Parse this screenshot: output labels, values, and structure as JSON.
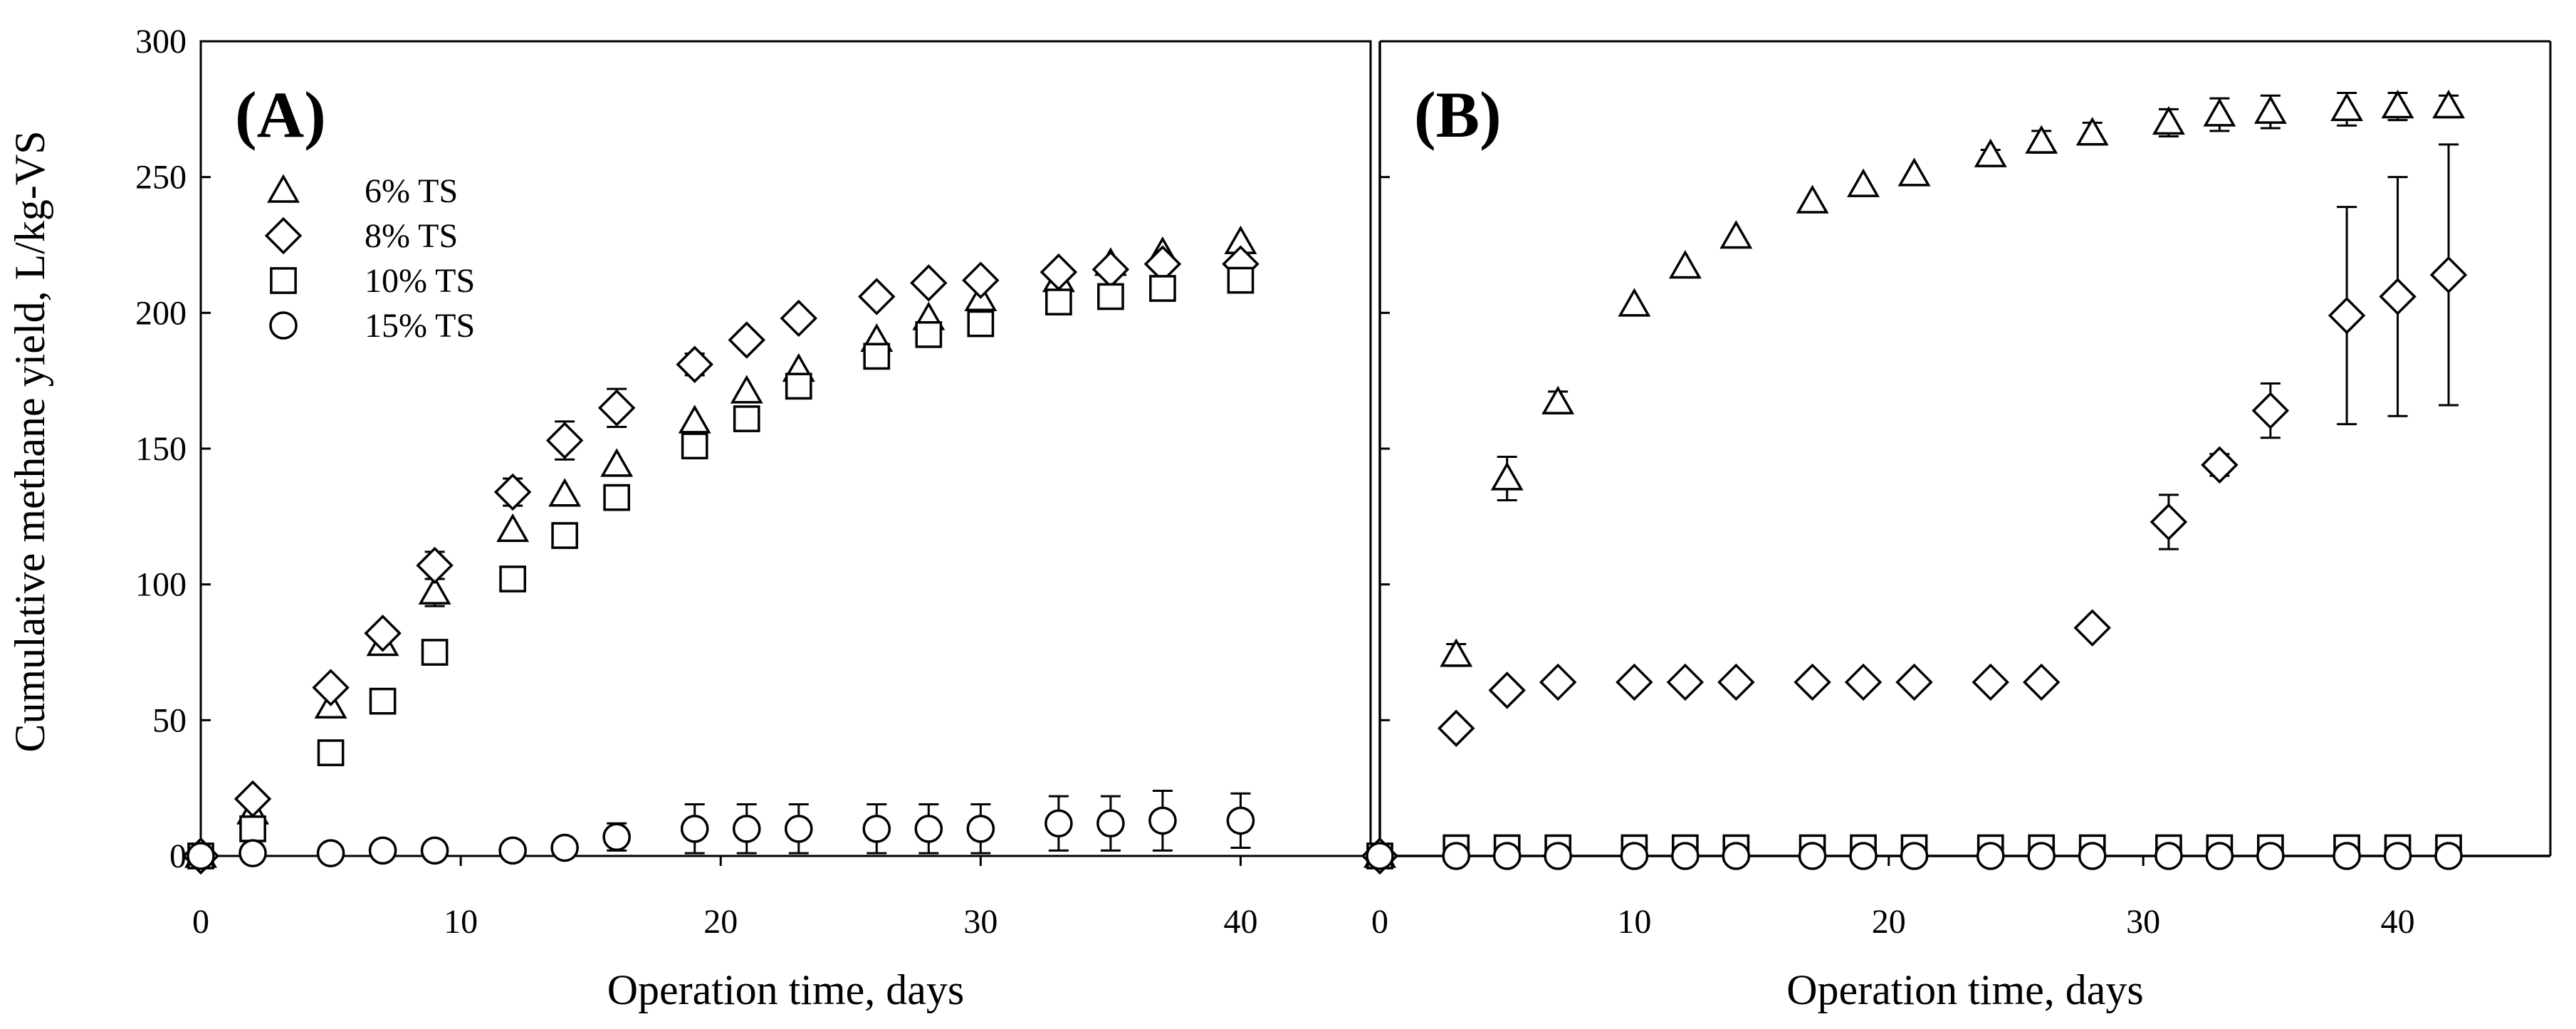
{
  "ylabel": "Cumulative methane yield, L/kg-VS",
  "chart_data": [
    {
      "type": "scatter",
      "panel_label": "(A)",
      "xlabel": "Operation time, days",
      "ylabel": "Cumulative methane yield, L/kg-VS",
      "xlim": [
        0,
        45
      ],
      "ylim": [
        0,
        300
      ],
      "xticks": [
        0,
        10,
        20,
        30,
        40
      ],
      "yticks": [
        0,
        50,
        100,
        150,
        200,
        250,
        300
      ],
      "legend": [
        "6% TS",
        "8% TS",
        "10% TS",
        "15% TS"
      ],
      "series": [
        {
          "name": "6% TS",
          "marker": "triangle",
          "x": [
            0,
            2,
            5,
            7,
            9,
            12,
            14,
            16,
            19,
            21,
            23,
            26,
            28,
            30,
            33,
            35,
            37,
            40
          ],
          "y": [
            0,
            16,
            55,
            78,
            97,
            120,
            133,
            144,
            160,
            171,
            179,
            190,
            198,
            205,
            212,
            218,
            222,
            226
          ],
          "err": [
            0,
            0,
            0,
            0,
            5,
            0,
            0,
            0,
            0,
            0,
            0,
            0,
            0,
            0,
            0,
            0,
            0,
            0
          ]
        },
        {
          "name": "8% TS",
          "marker": "diamond",
          "x": [
            0,
            2,
            5,
            7,
            9,
            12,
            14,
            16,
            19,
            21,
            23,
            26,
            28,
            30,
            33,
            35,
            37,
            40
          ],
          "y": [
            0,
            21,
            62,
            82,
            107,
            134,
            153,
            165,
            181,
            190,
            198,
            206,
            211,
            212,
            215,
            216,
            218,
            218
          ],
          "err": [
            0,
            0,
            0,
            0,
            5,
            5,
            7,
            7,
            4,
            3,
            2,
            0,
            0,
            0,
            0,
            0,
            0,
            0
          ]
        },
        {
          "name": "10% TS",
          "marker": "square",
          "x": [
            0,
            2,
            5,
            7,
            9,
            12,
            14,
            16,
            19,
            21,
            23,
            26,
            28,
            30,
            33,
            35,
            37,
            40
          ],
          "y": [
            0,
            10,
            38,
            57,
            75,
            102,
            118,
            132,
            151,
            161,
            173,
            184,
            192,
            196,
            204,
            206,
            209,
            212
          ],
          "err": [
            0,
            0,
            0,
            0,
            0,
            0,
            0,
            0,
            0,
            0,
            0,
            0,
            0,
            0,
            0,
            0,
            0,
            0
          ]
        },
        {
          "name": "15% TS",
          "marker": "circle",
          "x": [
            0,
            2,
            5,
            7,
            9,
            12,
            14,
            16,
            19,
            21,
            23,
            26,
            28,
            30,
            33,
            35,
            37,
            40
          ],
          "y": [
            0,
            1,
            1,
            2,
            2,
            2,
            3,
            7,
            10,
            10,
            10,
            10,
            10,
            10,
            12,
            12,
            13,
            13
          ],
          "err": [
            0,
            0,
            0,
            0,
            0,
            0,
            0,
            5,
            9,
            9,
            9,
            9,
            9,
            9,
            10,
            10,
            11,
            10
          ]
        }
      ]
    },
    {
      "type": "scatter",
      "panel_label": "(B)",
      "xlabel": "Operation time, days",
      "ylabel": "",
      "xlim": [
        0,
        46
      ],
      "ylim": [
        0,
        300
      ],
      "xticks": [
        0,
        10,
        20,
        30,
        40
      ],
      "yticks": [
        0,
        50,
        100,
        150,
        200,
        250,
        300
      ],
      "legend": [],
      "series": [
        {
          "name": "6% TS",
          "marker": "triangle",
          "x": [
            0,
            3,
            5,
            7,
            10,
            12,
            14,
            17,
            19,
            21,
            24,
            26,
            28,
            31,
            33,
            35,
            38,
            40,
            42
          ],
          "y": [
            0,
            74,
            139,
            167,
            203,
            217,
            228,
            241,
            247,
            251,
            258,
            263,
            266,
            270,
            273,
            274,
            275,
            276,
            276
          ],
          "err": [
            0,
            4,
            8,
            4,
            0,
            0,
            0,
            0,
            0,
            0,
            2,
            4,
            4,
            5,
            6,
            6,
            6,
            5,
            4
          ]
        },
        {
          "name": "8% TS",
          "marker": "diamond",
          "x": [
            0,
            3,
            5,
            7,
            10,
            12,
            14,
            17,
            19,
            21,
            24,
            26,
            28,
            31,
            33,
            35,
            38,
            40,
            42
          ],
          "y": [
            0,
            47,
            61,
            64,
            64,
            64,
            64,
            64,
            64,
            64,
            64,
            64,
            84,
            123,
            144,
            164,
            199,
            206,
            214
          ],
          "err": [
            0,
            0,
            0,
            0,
            0,
            0,
            0,
            0,
            0,
            0,
            0,
            0,
            0,
            10,
            4,
            10,
            40,
            44,
            48
          ]
        },
        {
          "name": "10% TS",
          "marker": "square",
          "x": [
            0,
            3,
            5,
            7,
            10,
            12,
            14,
            17,
            19,
            21,
            24,
            26,
            28,
            31,
            33,
            35,
            38,
            40,
            42
          ],
          "y": [
            0,
            3,
            3,
            3,
            3,
            3,
            3,
            3,
            3,
            3,
            3,
            3,
            3,
            3,
            3,
            3,
            3,
            3,
            3
          ],
          "err": [
            0,
            0,
            0,
            0,
            0,
            0,
            0,
            0,
            0,
            0,
            0,
            0,
            0,
            0,
            0,
            0,
            0,
            0,
            0
          ]
        },
        {
          "name": "15% TS",
          "marker": "circle",
          "x": [
            0,
            3,
            5,
            7,
            10,
            12,
            14,
            17,
            19,
            21,
            24,
            26,
            28,
            31,
            33,
            35,
            38,
            40,
            42
          ],
          "y": [
            0,
            0,
            0,
            0,
            0,
            0,
            0,
            0,
            0,
            0,
            0,
            0,
            0,
            0,
            0,
            0,
            0,
            0,
            0
          ],
          "err": [
            0,
            0,
            0,
            0,
            0,
            0,
            0,
            0,
            0,
            0,
            0,
            0,
            0,
            0,
            0,
            0,
            0,
            0,
            0
          ]
        }
      ]
    }
  ]
}
